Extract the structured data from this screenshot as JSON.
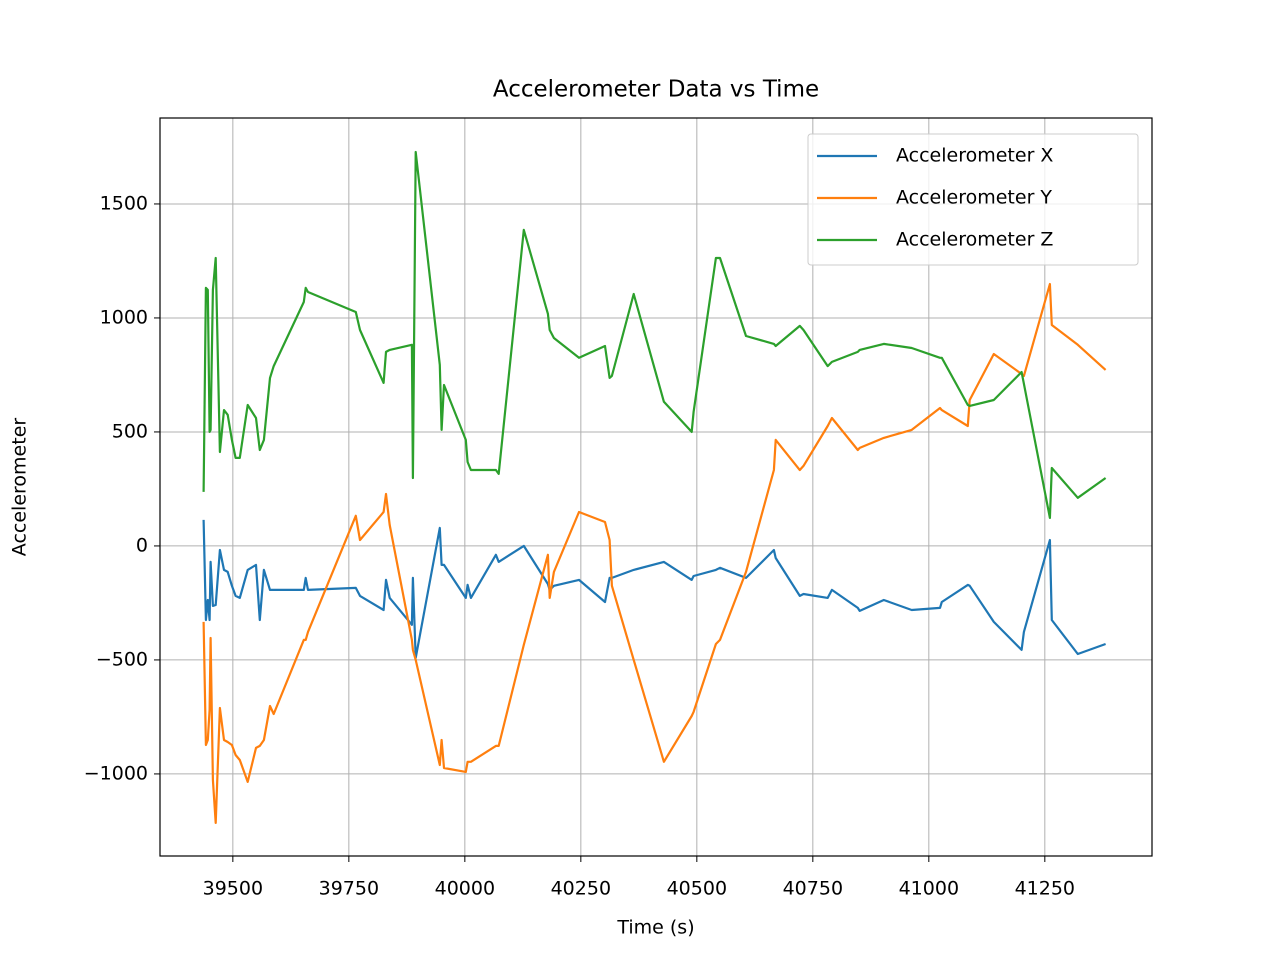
{
  "chart_data": {
    "type": "line",
    "title": "Accelerometer Data vs Time",
    "x_label": "Time (s)",
    "y_label": "Accelerometer",
    "x": [
      39437,
      39442,
      39446,
      39450,
      39452,
      39457,
      39463,
      39472,
      39481,
      39489,
      39498,
      39506,
      39515,
      39532,
      39550,
      39558,
      39567,
      39580,
      39588,
      39653,
      39657,
      39662,
      39765,
      39774,
      39825,
      39830,
      39838,
      39886,
      39888,
      39894,
      39946,
      39950,
      39955,
      40002,
      40006,
      40013,
      40067,
      40073,
      40127,
      40179,
      40183,
      40192,
      40246,
      40302,
      40312,
      40317,
      40364,
      40429,
      40489,
      40493,
      40541,
      40550,
      40606,
      40666,
      40670,
      40722,
      40730,
      40782,
      40791,
      40847,
      40851,
      40903,
      40963,
      41024,
      41028,
      41084,
      41088,
      41140,
      41200,
      41205,
      41261,
      41265,
      41321,
      41381
    ],
    "series": [
      {
        "name": "Accelerometer X",
        "color": "#1f77b4",
        "values": [
          114,
          -325,
          -237,
          -325,
          -70,
          -263,
          -259,
          -18,
          -105,
          -114,
          -175,
          -219,
          -228,
          -105,
          -83,
          -325,
          -105,
          -193,
          -193,
          -193,
          -140,
          -193,
          -184,
          -219,
          -281,
          -149,
          -228,
          -346,
          -140,
          -491,
          79,
          -83,
          -83,
          -228,
          -171,
          -228,
          -39,
          -70,
          0,
          -167,
          -193,
          -175,
          -149,
          -246,
          -140,
          -140,
          -105,
          -70,
          -149,
          -132,
          -105,
          -96,
          -140,
          -18,
          -53,
          -219,
          -211,
          -228,
          -193,
          -272,
          -285,
          -237,
          -281,
          -272,
          -246,
          -171,
          -175,
          -333,
          -456,
          -377,
          26,
          -325,
          -474,
          -430
        ]
      },
      {
        "name": "Accelerometer Y",
        "color": "#ff7f0e",
        "values": [
          -333,
          -873,
          -851,
          -719,
          -404,
          -1026,
          -1215,
          -711,
          -851,
          -860,
          -873,
          -917,
          -939,
          -1035,
          -886,
          -877,
          -851,
          -702,
          -737,
          -412,
          -412,
          -377,
          132,
          26,
          149,
          228,
          92,
          -412,
          -456,
          -500,
          -961,
          -851,
          -974,
          -991,
          -947,
          -947,
          -877,
          -877,
          -434,
          -39,
          -228,
          -114,
          149,
          105,
          26,
          -175,
          -500,
          -947,
          -746,
          -728,
          -430,
          -412,
          -114,
          333,
          465,
          333,
          351,
          526,
          561,
          421,
          430,
          474,
          509,
          605,
          596,
          526,
          640,
          842,
          754,
          746,
          1149,
          969,
          882,
          772
        ]
      },
      {
        "name": "Accelerometer Z",
        "color": "#2ca02c",
        "values": [
          237,
          1132,
          1123,
          500,
          509,
          1123,
          1263,
          412,
          596,
          575,
          465,
          386,
          386,
          618,
          561,
          421,
          465,
          737,
          789,
          1070,
          1132,
          1114,
          1026,
          947,
          715,
          851,
          860,
          882,
          298,
          1728,
          794,
          509,
          706,
          465,
          368,
          333,
          333,
          316,
          1386,
          1018,
          947,
          912,
          825,
          877,
          737,
          746,
          1105,
          632,
          500,
          588,
          1263,
          1263,
          921,
          886,
          877,
          965,
          947,
          789,
          807,
          851,
          860,
          886,
          868,
          825,
          825,
          618,
          614,
          640,
          763,
          711,
          123,
          342,
          211,
          298
        ]
      }
    ],
    "xlim": [
      39343,
      41481
    ],
    "ylim": [
      -1360,
      1877
    ],
    "xticks": [
      39500,
      39750,
      40000,
      40250,
      40500,
      40750,
      41000,
      41250
    ],
    "yticks": [
      {
        "value": -1000,
        "label": "−1000"
      },
      {
        "value": -500,
        "label": "−500"
      },
      0,
      500,
      1000,
      1500
    ],
    "grid": true,
    "legend": "upper right"
  }
}
